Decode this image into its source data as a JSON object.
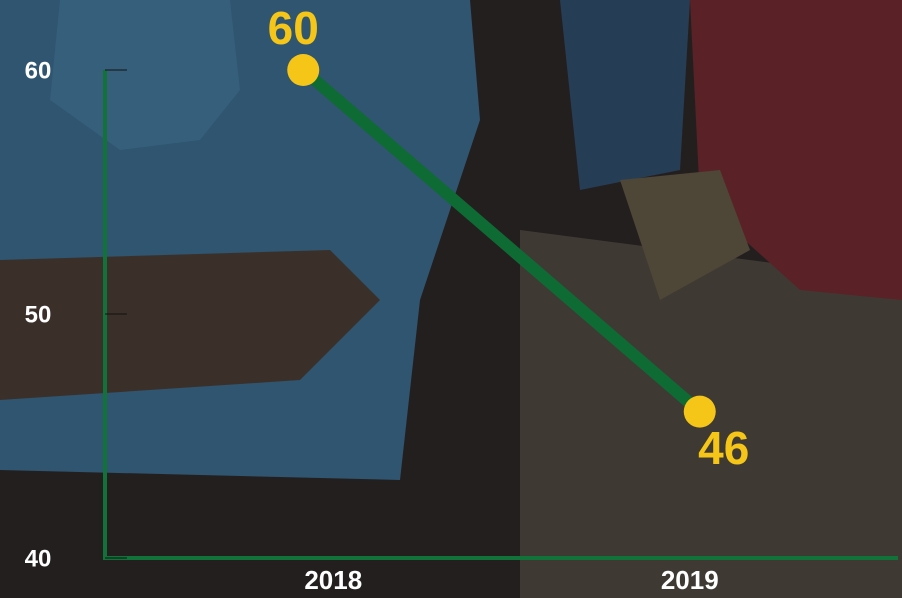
{
  "chart_data": {
    "type": "line",
    "categories": [
      "2018",
      "2019"
    ],
    "series": [
      {
        "color": "#0f6b34",
        "values": [
          60,
          46
        ]
      }
    ],
    "marker_color": "#f5c518",
    "axis_color": "#12733a",
    "ylim": [
      40,
      60
    ],
    "yticks": [
      40,
      50,
      60
    ]
  }
}
